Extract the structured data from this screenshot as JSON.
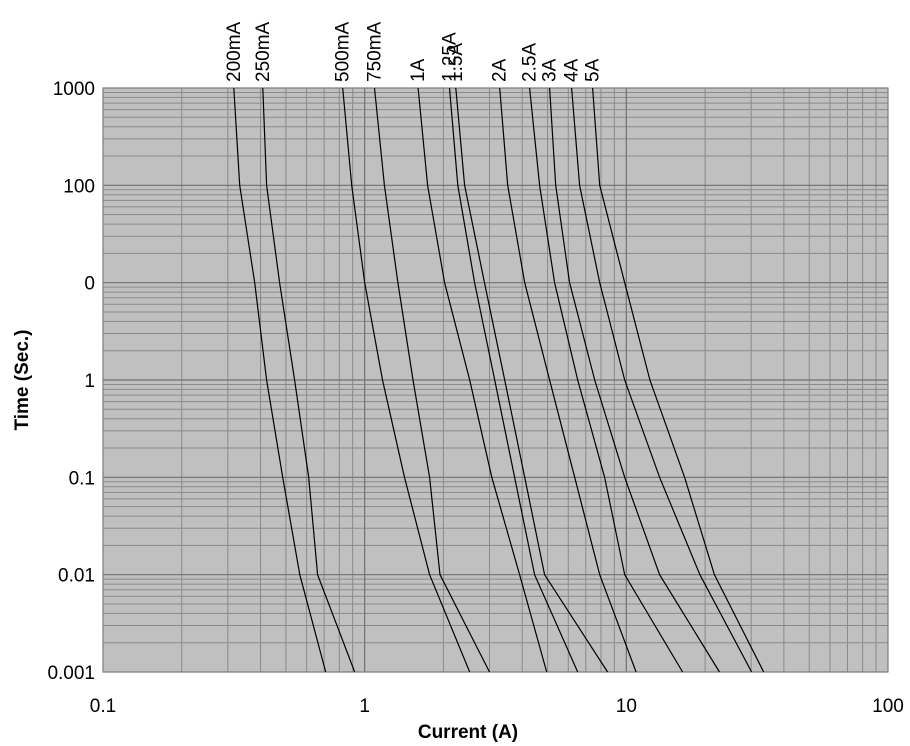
{
  "chart_data": {
    "type": "line",
    "x_label": "Current (A)",
    "y_label": "Time (Sec.)",
    "xscale": "log",
    "yscale": "log",
    "grid": true,
    "xlim": [
      0.1,
      100
    ],
    "xticks": [
      0.1,
      1,
      10,
      100
    ],
    "ylim": [
      0.001,
      1000
    ],
    "yticks": [
      0.001,
      0.01,
      0.1,
      1,
      {
        "value": 10,
        "label": "0"
      },
      100,
      1000
    ],
    "series": [
      {
        "name": "200mA",
        "color": "#000000",
        "x": [
          0.316,
          0.333,
          0.38,
          0.422,
          0.486,
          0.565,
          0.71
        ],
        "values": [
          1000,
          100,
          10,
          1,
          0.1,
          0.01,
          0.001
        ]
      },
      {
        "name": "250mA",
        "color": "#000000",
        "x": [
          0.408,
          0.422,
          0.473,
          0.54,
          0.611,
          0.661,
          0.916
        ],
        "values": [
          1000,
          100,
          10,
          1,
          0.1,
          0.01,
          0.001
        ]
      },
      {
        "name": "500mA",
        "color": "#000000",
        "x": [
          0.824,
          0.892,
          1.0,
          1.17,
          1.42,
          1.77,
          2.52
        ],
        "values": [
          1000,
          100,
          10,
          1,
          0.1,
          0.01,
          0.001
        ]
      },
      {
        "name": "750mA",
        "color": "#000000",
        "x": [
          1.09,
          1.19,
          1.34,
          1.53,
          1.77,
          1.94,
          3.0
        ],
        "values": [
          1000,
          100,
          10,
          1,
          0.1,
          0.01,
          0.001
        ]
      },
      {
        "name": "1A",
        "color": "#000000",
        "x": [
          1.6,
          1.74,
          2.02,
          2.52,
          3.06,
          3.91,
          4.96
        ],
        "values": [
          1000,
          100,
          10,
          1,
          0.1,
          0.01,
          0.001
        ]
      },
      {
        "name": "1.25A",
        "color": "#000000",
        "x": [
          2.11,
          2.27,
          2.63,
          3.14,
          3.74,
          4.46,
          6.52
        ],
        "values": [
          1000,
          100,
          10,
          1,
          0.1,
          0.01,
          0.001
        ]
      },
      {
        "name": "1.5A",
        "color": "#000000",
        "x": [
          2.23,
          2.41,
          2.87,
          3.43,
          4.09,
          4.87,
          8.48
        ],
        "values": [
          1000,
          100,
          10,
          1,
          0.1,
          0.01,
          0.001
        ]
      },
      {
        "name": "2A",
        "color": "#000000",
        "x": [
          3.28,
          3.52,
          4.09,
          5.09,
          6.35,
          7.91,
          10.9
        ],
        "values": [
          1000,
          100,
          10,
          1,
          0.1,
          0.01,
          0.001
        ]
      },
      {
        "name": "2.5A",
        "color": "#000000",
        "x": [
          4.27,
          4.66,
          5.32,
          6.52,
          8.26,
          9.86,
          16.4
        ],
        "values": [
          1000,
          100,
          10,
          1,
          0.1,
          0.01,
          0.001
        ]
      },
      {
        "name": "3A",
        "color": "#000000",
        "x": [
          5.09,
          5.37,
          6.07,
          7.57,
          9.86,
          13.4,
          22.7
        ],
        "values": [
          1000,
          100,
          10,
          1,
          0.1,
          0.01,
          0.001
        ]
      },
      {
        "name": "4A",
        "color": "#000000",
        "x": [
          6.18,
          6.63,
          7.91,
          9.86,
          13.4,
          19.1,
          30.1
        ],
        "values": [
          1000,
          100,
          10,
          1,
          0.1,
          0.01,
          0.001
        ]
      },
      {
        "name": "5A",
        "color": "#000000",
        "x": [
          7.43,
          7.91,
          9.86,
          12.3,
          16.7,
          21.7,
          33.5
        ],
        "values": [
          1000,
          100,
          10,
          1,
          0.1,
          0.01,
          0.001
        ]
      }
    ]
  }
}
